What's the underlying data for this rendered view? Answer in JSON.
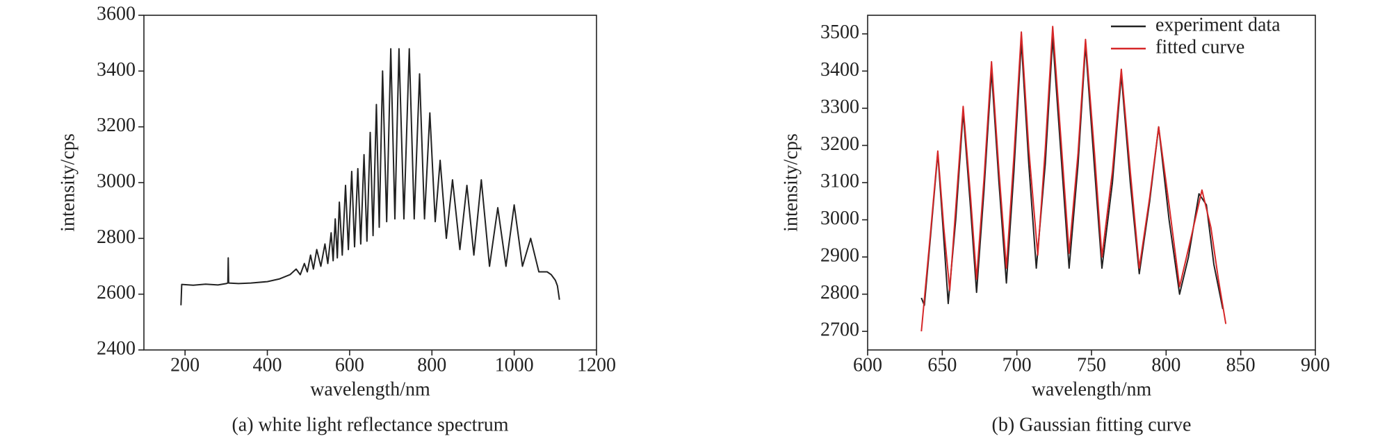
{
  "chart_data": [
    {
      "type": "line",
      "title": "(a) white light reflectance spectrum",
      "xlabel": "wavelength/nm",
      "ylabel": "intensity/cps",
      "xlim": [
        100,
        1200
      ],
      "ylim": [
        2400,
        3600
      ],
      "xticks": [
        200,
        400,
        600,
        800,
        1000,
        1200
      ],
      "yticks": [
        2400,
        2600,
        2800,
        3000,
        3200,
        3400,
        3600
      ],
      "color": "#222222",
      "x": [
        190,
        192,
        220,
        250,
        280,
        300,
        304,
        305,
        306,
        330,
        360,
        400,
        430,
        455,
        470,
        480,
        490,
        497,
        505,
        512,
        520,
        530,
        540,
        547,
        555,
        560,
        565,
        570,
        575,
        582,
        590,
        597,
        605,
        612,
        620,
        627,
        635,
        642,
        650,
        657,
        665,
        672,
        680,
        690,
        700,
        710,
        720,
        732,
        745,
        757,
        770,
        782,
        795,
        808,
        820,
        835,
        850,
        868,
        885,
        902,
        920,
        940,
        960,
        980,
        1000,
        1020,
        1040,
        1060,
        1080,
        1090,
        1100,
        1105,
        1110
      ],
      "values": [
        2560,
        2635,
        2632,
        2636,
        2633,
        2638,
        2640,
        2730,
        2640,
        2638,
        2640,
        2645,
        2655,
        2670,
        2690,
        2670,
        2710,
        2680,
        2740,
        2690,
        2760,
        2700,
        2780,
        2710,
        2820,
        2720,
        2870,
        2730,
        2930,
        2740,
        2990,
        2760,
        3040,
        2770,
        3050,
        2780,
        3100,
        2790,
        3180,
        2810,
        3280,
        2840,
        3400,
        2860,
        3480,
        2870,
        3480,
        2870,
        3480,
        2870,
        3390,
        2870,
        3250,
        2860,
        3080,
        2800,
        3010,
        2760,
        2990,
        2740,
        3010,
        2700,
        2910,
        2700,
        2920,
        2700,
        2800,
        2680,
        2680,
        2670,
        2650,
        2630,
        2580
      ]
    },
    {
      "type": "line",
      "title": "(b) Gaussian fitting curve",
      "xlabel": "wavelength/nm",
      "ylabel": "intensity/cps",
      "xlim": [
        600,
        900
      ],
      "ylim": [
        2650,
        3550
      ],
      "xticks": [
        600,
        650,
        700,
        750,
        800,
        850,
        900
      ],
      "yticks": [
        2700,
        2800,
        2900,
        3000,
        3100,
        3200,
        3300,
        3400,
        3500
      ],
      "legend": "upper right",
      "series": [
        {
          "name": "experiment data",
          "color": "#222222",
          "x": [
            636,
            638,
            642,
            647,
            651,
            654,
            659,
            664,
            669,
            673,
            678,
            683,
            688,
            693,
            698,
            703,
            708,
            713,
            719,
            724,
            730,
            735,
            741,
            746,
            752,
            757,
            764,
            770,
            776,
            782,
            789,
            795,
            802,
            809,
            815,
            822,
            827,
            832,
            838
          ],
          "values": [
            2790,
            2770,
            2950,
            3180,
            2950,
            2775,
            3000,
            3290,
            3030,
            2805,
            3080,
            3400,
            3100,
            2830,
            3130,
            3480,
            3150,
            2870,
            3150,
            3490,
            3150,
            2870,
            3150,
            3470,
            3140,
            2870,
            3100,
            3390,
            3100,
            2855,
            3050,
            3250,
            3000,
            2800,
            2900,
            3070,
            3040,
            2880,
            2760
          ]
        },
        {
          "name": "fitted curve",
          "color": "#d62728",
          "x": [
            636,
            642,
            647,
            651,
            655,
            659,
            664,
            669,
            673,
            678,
            683,
            688,
            693,
            698,
            703,
            708,
            714,
            719,
            724,
            730,
            735,
            741,
            746,
            752,
            757,
            764,
            770,
            776,
            782,
            789,
            795,
            802,
            809,
            816,
            824,
            830,
            835,
            840
          ],
          "values": [
            2700,
            2960,
            3185,
            2980,
            2810,
            3030,
            3305,
            3060,
            2840,
            3110,
            3425,
            3130,
            2870,
            3170,
            3505,
            3190,
            2905,
            3190,
            3520,
            3190,
            2910,
            3180,
            3485,
            3180,
            2900,
            3130,
            3405,
            3130,
            2870,
            3060,
            3250,
            3040,
            2820,
            2940,
            3080,
            2980,
            2840,
            2720
          ]
        }
      ]
    }
  ]
}
